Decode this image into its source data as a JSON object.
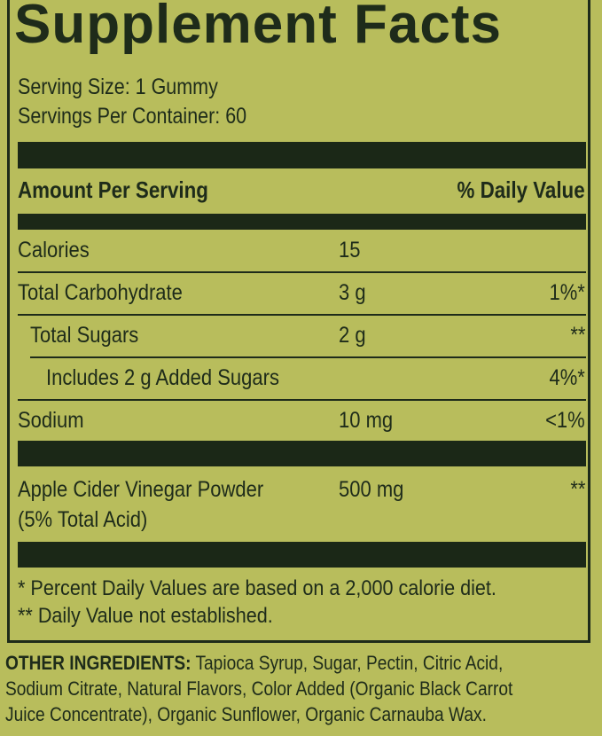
{
  "title": "Supplement Facts",
  "serving_size": "Serving Size: 1 Gummy",
  "servings_per_container": "Servings Per Container: 60",
  "header": {
    "amount": "Amount Per Serving",
    "dv": "% Daily Value"
  },
  "rows": [
    {
      "name": "Calories",
      "amount": "15",
      "dv": ""
    },
    {
      "name": "Total Carbohydrate",
      "amount": "3 g",
      "dv": "1%*"
    },
    {
      "name": "Total Sugars",
      "amount": "2 g",
      "dv": "**"
    },
    {
      "name": "Includes 2 g Added Sugars",
      "amount": "",
      "dv": "4%*"
    },
    {
      "name": "Sodium",
      "amount": "10 mg",
      "dv": "<1%"
    }
  ],
  "acv": {
    "name": "Apple Cider Vinegar Powder",
    "sub": "(5% Total Acid)",
    "amount": "500 mg",
    "dv": "**"
  },
  "footnotes": [
    "* Percent Daily Values are based on a 2,000 calorie diet.",
    "** Daily Value not established."
  ],
  "other_ingredients": {
    "label": "OTHER INGREDIENTS:",
    "lines": [
      " Tapioca Syrup, Sugar, Pectin, Citric Acid,",
      "Sodium Citrate, Natural Flavors, Color Added (Organic Black Carrot",
      "Juice Concentrate), Organic Sunflower, Organic Carnauba Wax."
    ]
  },
  "colors": {
    "background": "#b8bd5c",
    "ink": "#1e2b1a"
  }
}
